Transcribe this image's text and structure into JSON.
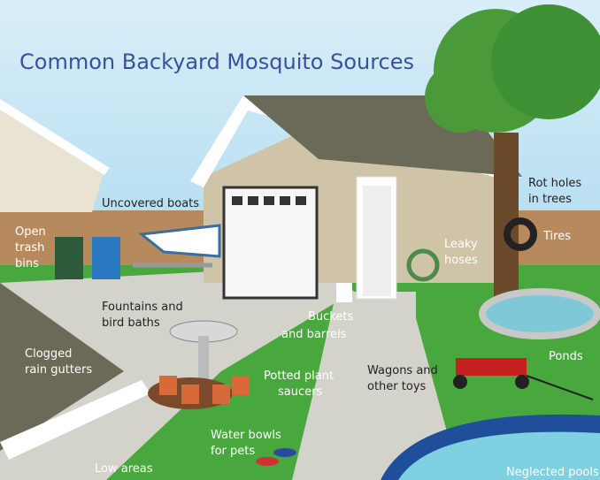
{
  "title": "Common Backyard Mosquito Sources",
  "labels": [
    {
      "lines": [
        "Open",
        "trash",
        "bins"
      ]
    },
    {
      "lines": [
        "Uncovered boats"
      ]
    },
    {
      "lines": [
        "Rot holes",
        "in trees"
      ]
    },
    {
      "lines": [
        "Tires"
      ]
    },
    {
      "lines": [
        "Leaky",
        "hoses"
      ]
    },
    {
      "lines": [
        "Fountains and",
        "bird baths"
      ]
    },
    {
      "lines": [
        "Buckets",
        "and barrels"
      ]
    },
    {
      "lines": [
        "Clogged",
        "rain gutters"
      ]
    },
    {
      "lines": [
        "Potted plant",
        "saucers"
      ]
    },
    {
      "lines": [
        "Wagons and",
        "other toys"
      ]
    },
    {
      "lines": [
        "Ponds"
      ]
    },
    {
      "lines": [
        "Water bowls",
        "for pets"
      ]
    },
    {
      "lines": [
        "Low areas"
      ]
    },
    {
      "lines": [
        "Neglected pools"
      ]
    }
  ]
}
